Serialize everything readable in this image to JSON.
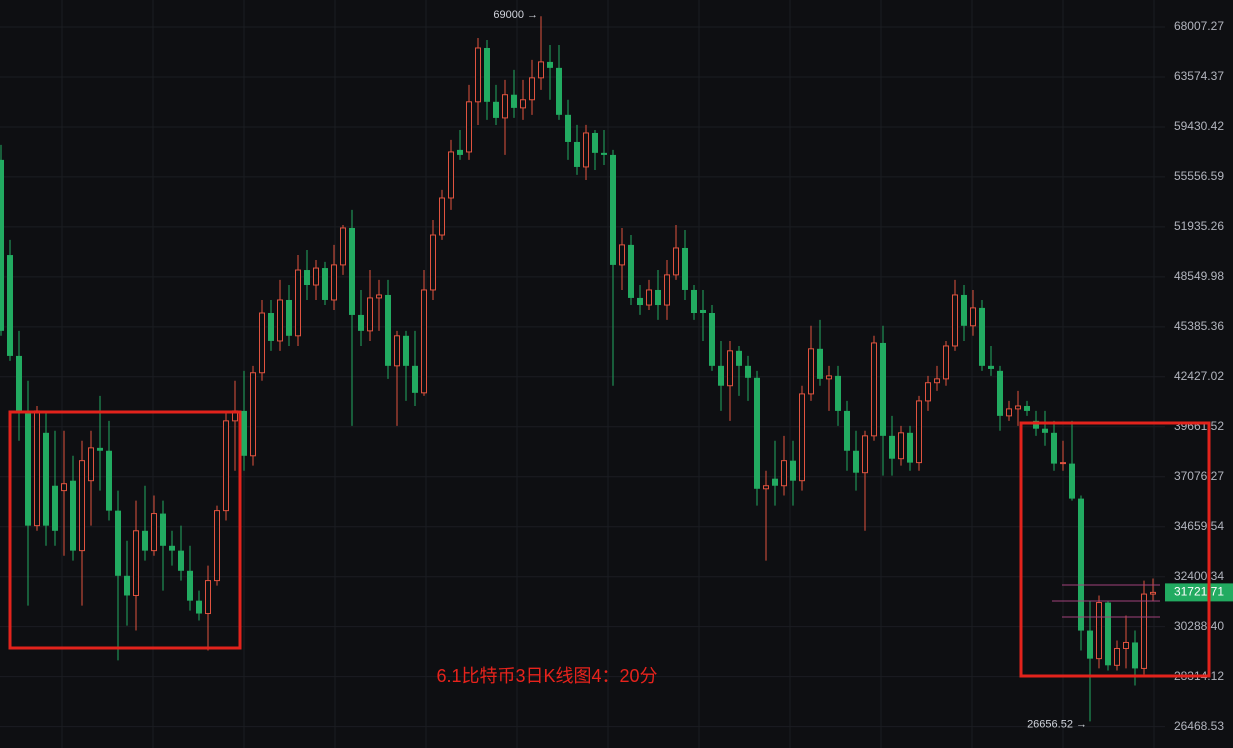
{
  "chart_data": {
    "type": "candlestick",
    "caption": "6.1比特币3日K线图4：20分",
    "log_scale": true,
    "grid": true,
    "up_color": "#e0533f",
    "down_color": "#22ab61",
    "ylim": [
      25716,
      70530
    ],
    "yticks": [
      68007.27,
      63574.37,
      59430.42,
      55556.59,
      51935.26,
      48549.98,
      45385.36,
      42427.02,
      39661.52,
      37076.27,
      34659.54,
      32400.34,
      {
        "value": 30288.4,
        "label": "30288.40"
      },
      28314.12,
      26468.53
    ],
    "annotations": {
      "high": "69000 →",
      "low": "26656.52 →"
    },
    "open": [
      56850,
      50000,
      43640,
      40520,
      34710,
      39340,
      36630,
      36390,
      36880,
      33560,
      36880,
      38550,
      38400,
      35420,
      32440,
      31590,
      34470,
      33560,
      35280,
      33780,
      33560,
      32660,
      31370,
      30830,
      32230,
      35420,
      39980,
      40520,
      38140,
      42660,
      46240,
      44530,
      47060,
      44840,
      49000,
      48020,
      49130,
      47060,
      49340,
      51860,
      46120,
      45140,
      47190,
      47380,
      43060,
      44840,
      43060,
      41520,
      47700,
      51370,
      54000,
      57620,
      57460,
      61480,
      66110,
      61480,
      60160,
      62070,
      60980,
      61650,
      63500,
      64880,
      64360,
      60410,
      58240,
      56310,
      58950,
      57390,
      57230,
      49340,
      50690,
      47190,
      46740,
      47700,
      46740,
      48680,
      50480,
      47700,
      46430,
      46240,
      43060,
      41920,
      43940,
      43060,
      42370,
      36480,
      36980,
      36630,
      37890,
      36880,
      41460,
      44060,
      42310,
      42480,
      40520,
      38400,
      37280,
      39180,
      44410,
      39180,
      37990,
      39340,
      37790,
      41070,
      42090,
      42310,
      44230,
      47380,
      45450,
      46560,
      43060,
      42770,
      40250,
      40630,
      40790,
      39980,
      39560,
      39340,
      37740,
      37740,
      36000,
      30130,
      29010,
      31290,
      28750,
      29410,
      29650,
      28630,
      31650
    ],
    "high": [
      58010,
      51030,
      45140,
      42200,
      40790,
      40520,
      39450,
      39450,
      38140,
      38920,
      39450,
      41350,
      39980,
      36390,
      34010,
      35900,
      36630,
      36150,
      35900,
      34470,
      34710,
      33780,
      31800,
      32890,
      35660,
      40520,
      42200,
      42770,
      43060,
      47060,
      47060,
      48350,
      48020,
      50000,
      50340,
      49670,
      49540,
      50690,
      52070,
      53140,
      47700,
      49000,
      48350,
      48350,
      45140,
      45140,
      45140,
      49000,
      52420,
      54590,
      58400,
      59190,
      62900,
      67010,
      66830,
      62900,
      63330,
      64190,
      63330,
      65060,
      69000,
      66380,
      66380,
      61650,
      59600,
      59600,
      59190,
      59190,
      57620,
      51860,
      51370,
      48020,
      48350,
      49000,
      49670,
      52070,
      51720,
      48020,
      47700,
      46740,
      44530,
      44530,
      44230,
      43640,
      42770,
      37380,
      38920,
      39180,
      38920,
      41920,
      45450,
      45810,
      43060,
      43060,
      41070,
      39450,
      39450,
      44840,
      45450,
      40250,
      39710,
      39710,
      41350,
      42480,
      43060,
      44530,
      48350,
      48020,
      47700,
      47060,
      44230,
      43060,
      41070,
      41630,
      41070,
      40520,
      40520,
      39980,
      38920,
      39980,
      36150,
      31370,
      31590,
      31370,
      29730,
      30750,
      30130,
      32230,
      32320
    ],
    "low": [
      44840,
      43350,
      38920,
      31160,
      34470,
      33780,
      33780,
      33330,
      33110,
      31160,
      34710,
      36390,
      34950,
      28940,
      30330,
      30130,
      33110,
      33330,
      31800,
      32890,
      32230,
      30950,
      30540,
      29330,
      32010,
      34950,
      37380,
      37380,
      37640,
      42200,
      43940,
      43940,
      44230,
      44230,
      47060,
      47060,
      46740,
      46430,
      48680,
      39710,
      44230,
      44530,
      45140,
      42310,
      39710,
      41070,
      40790,
      41350,
      47060,
      51030,
      53140,
      56850,
      56850,
      59590,
      60000,
      59590,
      57230,
      60160,
      60000,
      60410,
      62480,
      61650,
      60000,
      56850,
      55710,
      55330,
      56080,
      56460,
      41920,
      47700,
      46740,
      46120,
      46430,
      45810,
      45810,
      48350,
      47060,
      45810,
      44530,
      42770,
      40520,
      39980,
      41350,
      41070,
      35660,
      33110,
      35660,
      36150,
      35660,
      36390,
      41070,
      41920,
      40520,
      39710,
      37380,
      36390,
      34470,
      38920,
      37130,
      37130,
      37640,
      37380,
      37380,
      40520,
      41630,
      41920,
      43940,
      44530,
      44840,
      42770,
      42480,
      39450,
      39980,
      39710,
      40250,
      39180,
      38660,
      37380,
      37380,
      35900,
      29330,
      26656.52,
      28630,
      28550,
      28550,
      28630,
      27980,
      28400,
      31370
    ],
    "close": [
      45140,
      43640,
      40520,
      34710,
      40520,
      34710,
      34470,
      36730,
      33560,
      37890,
      38550,
      38400,
      35420,
      32440,
      31590,
      34470,
      33560,
      35280,
      33780,
      33560,
      32660,
      31370,
      30830,
      32230,
      35420,
      39980,
      40520,
      38140,
      42660,
      46240,
      44530,
      47060,
      44840,
      49000,
      48020,
      49130,
      47060,
      49340,
      51860,
      46120,
      45140,
      47190,
      47380,
      43060,
      44840,
      43060,
      41520,
      47700,
      51370,
      54000,
      57460,
      57230,
      61480,
      66110,
      61480,
      60160,
      62070,
      60980,
      61650,
      63500,
      64880,
      64360,
      60410,
      58240,
      56310,
      58950,
      57390,
      57230,
      49340,
      50690,
      47190,
      46740,
      47700,
      46740,
      48680,
      50480,
      47700,
      46240,
      46240,
      43060,
      41920,
      43940,
      43060,
      42370,
      36480,
      36630,
      36630,
      37890,
      36880,
      41460,
      44060,
      42310,
      42480,
      40520,
      38400,
      37280,
      39180,
      44410,
      39180,
      37990,
      39340,
      37790,
      41070,
      42090,
      42310,
      44230,
      47380,
      45450,
      46560,
      43060,
      42880,
      40250,
      40630,
      40790,
      40520,
      39560,
      39340,
      37740,
      37790,
      36000,
      30130,
      29010,
      31290,
      28750,
      29410,
      29650,
      28630,
      31650,
      31721.71
    ]
  }
}
